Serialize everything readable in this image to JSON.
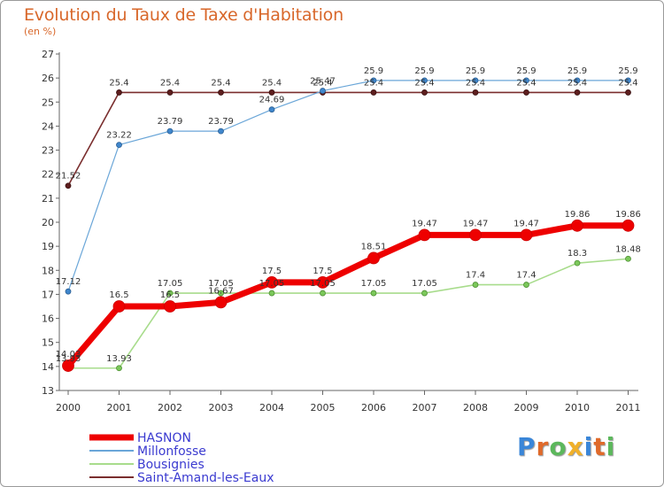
{
  "title": "Evolution du Taux de Taxe d'Habitation",
  "subtitle": "(en %)",
  "logo_text": "Proxiti",
  "chart_data": {
    "type": "line",
    "title": "Evolution du Taux de Taxe d'Habitation",
    "subtitle": "(en %)",
    "x": [
      2000,
      2001,
      2002,
      2003,
      2004,
      2005,
      2006,
      2007,
      2008,
      2009,
      2010,
      2011
    ],
    "ylim": [
      13,
      27
    ],
    "yticks": [
      13,
      14,
      15,
      16,
      17,
      18,
      19,
      20,
      21,
      22,
      23,
      24,
      25,
      26,
      27
    ],
    "grid": false,
    "legend_position": "bottom-left",
    "series": [
      {
        "name": "HASNON",
        "color": "#ee0000",
        "values": [
          14.03,
          16.5,
          16.5,
          16.67,
          17.5,
          17.5,
          18.51,
          19.47,
          19.47,
          19.47,
          19.86,
          19.86
        ]
      },
      {
        "name": "Millonfosse",
        "color": "#5b9bd5",
        "values": [
          17.12,
          23.22,
          23.79,
          23.79,
          24.69,
          25.47,
          25.9,
          25.9,
          25.9,
          25.9,
          25.9,
          25.9
        ]
      },
      {
        "name": "Bousignies",
        "color": "#92d36e",
        "values": [
          13.93,
          13.93,
          17.05,
          17.05,
          17.05,
          17.05,
          17.05,
          17.05,
          17.4,
          17.4,
          18.3,
          18.48
        ]
      },
      {
        "name": "Saint-Amand-les-Eaux",
        "color": "#7a2e2e",
        "values": [
          21.52,
          25.4,
          25.4,
          25.4,
          25.4,
          25.4,
          25.4,
          25.4,
          25.4,
          25.4,
          25.4,
          25.4
        ]
      }
    ],
    "labels": {
      "HASNON": [
        "14.03",
        "16.5",
        "16.5",
        "16.67",
        "17.5",
        "17.5",
        "18.51",
        "19.47",
        "19.47",
        "19.47",
        "19.86",
        "19.86"
      ],
      "Millonfosse": [
        "17.12",
        "23.22",
        "23.79",
        "23.79",
        "24.69",
        "25.47",
        "25.9",
        "25.9",
        "25.9",
        "25.9",
        "25.9",
        "25.9"
      ],
      "Bousignies": [
        "13.93",
        "13.93",
        "17.05",
        "17.05",
        "17.05",
        "17.05",
        "17.05",
        "17.05",
        "17.4",
        "17.4",
        "18.3",
        "18.48"
      ],
      "Saint-Amand-les-Eaux": [
        "21.52",
        "25.4",
        "25.4",
        "25.4",
        "25.4",
        "25.4",
        "25.4",
        "25.4",
        "25.4",
        "25.4",
        "25.4",
        "25.4"
      ]
    }
  }
}
